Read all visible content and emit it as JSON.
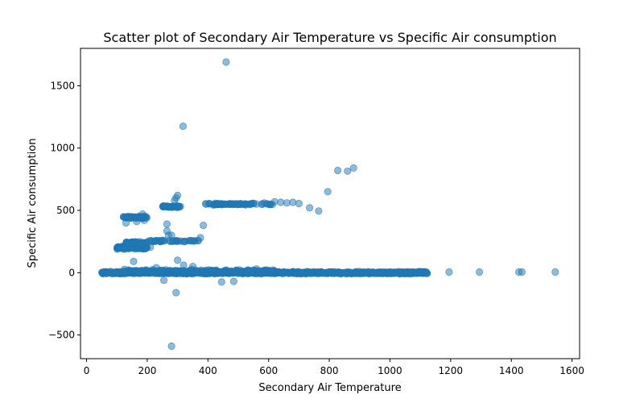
{
  "chart_data": {
    "type": "scatter",
    "title": "Scatter plot of Secondary Air Temperature vs Specific Air consumption",
    "xlabel": "Secondary Air Temperature",
    "ylabel": "Specific Air consumption",
    "xlim": [
      -20,
      1625
    ],
    "ylim": [
      -690,
      1800
    ],
    "xticks": [
      0,
      200,
      400,
      600,
      800,
      1000,
      1200,
      1400,
      1600
    ],
    "yticks": [
      -500,
      0,
      500,
      1000,
      1500
    ],
    "grid": false,
    "legend": "none",
    "point_color": "#1f77b4",
    "point_alpha": 0.5,
    "clusters": [
      {
        "x_range": [
          50,
          1125
        ],
        "y_center": 0,
        "y_spread": 14,
        "count": 900
      },
      {
        "x_range": [
          120,
          620
        ],
        "y_center": 10,
        "y_spread": 25,
        "count": 250
      },
      {
        "x_range": [
          100,
          200
        ],
        "y_center": 200,
        "y_spread": 15,
        "count": 90
      },
      {
        "x_range": [
          130,
          200
        ],
        "y_center": 240,
        "y_spread": 15,
        "count": 40
      },
      {
        "x_range": [
          200,
          370
        ],
        "y_center": 255,
        "y_spread": 8,
        "count": 40
      },
      {
        "x_range": [
          120,
          200
        ],
        "y_center": 445,
        "y_spread": 12,
        "count": 60
      },
      {
        "x_range": [
          250,
          310
        ],
        "y_center": 530,
        "y_spread": 10,
        "count": 40
      },
      {
        "x_range": [
          390,
          620
        ],
        "y_center": 550,
        "y_spread": 12,
        "count": 70
      }
    ],
    "points": [
      [
        460,
        1690
      ],
      [
        318,
        1175
      ],
      [
        828,
        820
      ],
      [
        860,
        815
      ],
      [
        880,
        840
      ],
      [
        795,
        650
      ],
      [
        735,
        520
      ],
      [
        765,
        495
      ],
      [
        700,
        555
      ],
      [
        680,
        565
      ],
      [
        660,
        560
      ],
      [
        640,
        565
      ],
      [
        620,
        570
      ],
      [
        385,
        380
      ],
      [
        375,
        280
      ],
      [
        265,
        390
      ],
      [
        265,
        335
      ],
      [
        270,
        300
      ],
      [
        295,
        600
      ],
      [
        300,
        620
      ],
      [
        290,
        580
      ],
      [
        280,
        300
      ],
      [
        280,
        -590
      ],
      [
        295,
        -160
      ],
      [
        255,
        -60
      ],
      [
        445,
        -75
      ],
      [
        485,
        -70
      ],
      [
        1195,
        5
      ],
      [
        1295,
        5
      ],
      [
        1425,
        5
      ],
      [
        1435,
        5
      ],
      [
        1545,
        5
      ],
      [
        155,
        90
      ],
      [
        300,
        100
      ],
      [
        320,
        60
      ],
      [
        165,
        410
      ],
      [
        190,
        420
      ],
      [
        185,
        470
      ],
      [
        130,
        400
      ],
      [
        210,
        205
      ],
      [
        245,
        10
      ],
      [
        230,
        40
      ],
      [
        350,
        50
      ],
      [
        560,
        30
      ],
      [
        250,
        260
      ],
      [
        240,
        255
      ],
      [
        225,
        250
      ]
    ]
  }
}
